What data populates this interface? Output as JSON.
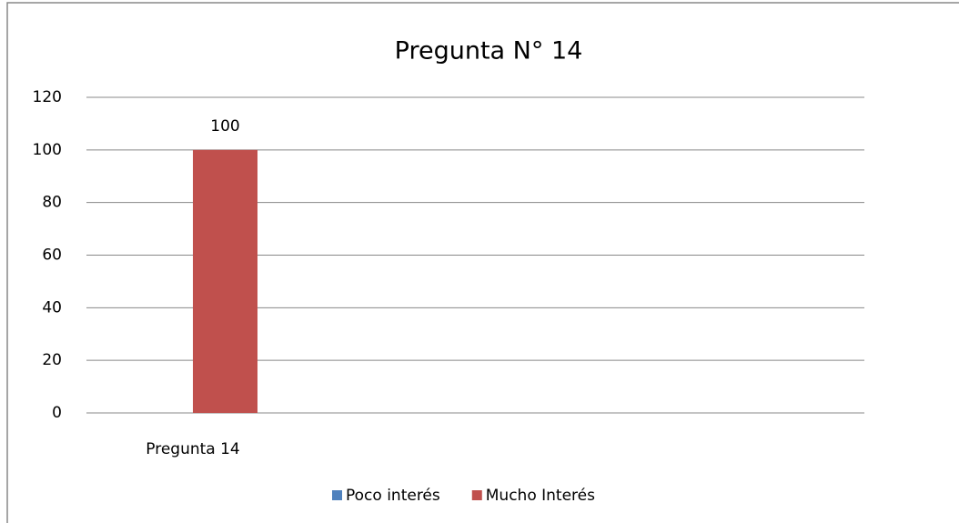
{
  "chart_data": {
    "type": "bar",
    "title": "Pregunta N° 14",
    "categories": [
      "Pregunta 14"
    ],
    "series": [
      {
        "name": "Poco interés",
        "color": "#4f81bd",
        "values": [
          0
        ]
      },
      {
        "name": "Mucho Interés",
        "color": "#c0504d",
        "values": [
          100
        ],
        "show_labels": true
      }
    ],
    "ylim": [
      0,
      120
    ],
    "yticks": [
      0,
      20,
      40,
      60,
      80,
      100,
      120
    ],
    "grid": true,
    "legend": "bottom"
  }
}
